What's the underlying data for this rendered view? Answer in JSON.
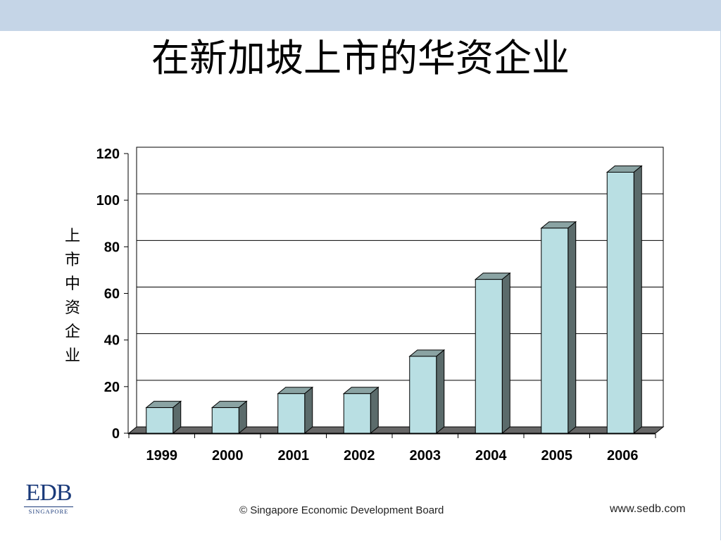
{
  "slide": {
    "title": "在新加坡上市的华资企业",
    "logo_text": "EDB",
    "logo_subtext": "SINGAPORE",
    "footer_copyright": "© Singapore Economic Development Board",
    "footer_website": "www.sedb.com"
  },
  "colors": {
    "top_band": "#c5d5e7",
    "bar_front": "#b9dfe3",
    "bar_side": "#5b6b6b",
    "bar_top": "#8aa3a3",
    "floor": "#666666"
  },
  "chart_data": {
    "type": "bar",
    "title": "",
    "xlabel": "",
    "ylabel": "上市中资企业",
    "categories": [
      "1999",
      "2000",
      "2001",
      "2002",
      "2003",
      "2004",
      "2005",
      "2006"
    ],
    "values": [
      11,
      11,
      17,
      17,
      33,
      66,
      88,
      112
    ],
    "ylim": [
      0,
      120
    ],
    "yticks": [
      0,
      20,
      40,
      60,
      80,
      100,
      120
    ],
    "grid": true,
    "legend": "none",
    "style": "3d-column"
  }
}
